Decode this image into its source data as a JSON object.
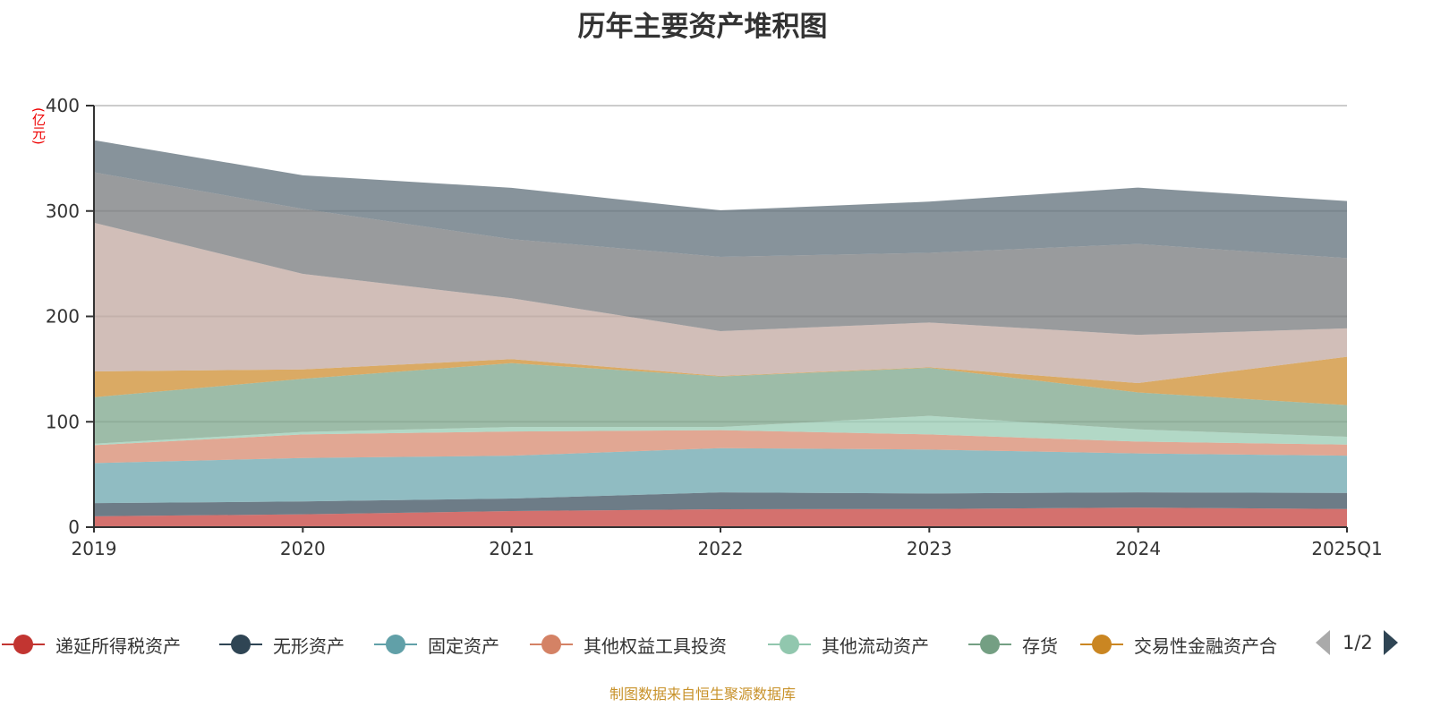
{
  "chart_data": {
    "type": "area",
    "stacked": true,
    "title": "历年主要资产堆积图",
    "ylabel": "(亿元)",
    "xlabel": "",
    "categories": [
      "2019",
      "2020",
      "2021",
      "2022",
      "2023",
      "2024",
      "2025Q1"
    ],
    "ylim": [
      0,
      400
    ],
    "yticks": [
      "0",
      "100",
      "200",
      "300",
      "400"
    ],
    "grid": true,
    "legend_position": "bottom",
    "legend_page": "1/2",
    "series": [
      {
        "name": "递延所得税资产",
        "color": "#c23531",
        "values": [
          10.3,
          12.2,
          15.3,
          17.0,
          17.2,
          18.6,
          17.2
        ]
      },
      {
        "name": "无形资产",
        "color": "#2f4554",
        "values": [
          12.5,
          12.2,
          11.9,
          16.0,
          14.8,
          14.4,
          15.3
        ]
      },
      {
        "name": "固定资产",
        "color": "#61a0a8",
        "values": [
          38.0,
          41.2,
          40.6,
          42.0,
          41.6,
          37.0,
          35.3
        ]
      },
      {
        "name": "其他权益工具投资",
        "color": "#d48265",
        "values": [
          17.0,
          22.4,
          23.0,
          17.0,
          14.4,
          11.2,
          10.5
        ]
      },
      {
        "name": "其他流动资产",
        "color": "#91c7ae",
        "values": [
          1.4,
          2.3,
          4.2,
          3.0,
          17.6,
          11.6,
          7.5
        ]
      },
      {
        "name": "存货",
        "color": "#749f83",
        "values": [
          44.1,
          50.5,
          60.6,
          48.0,
          45.6,
          35.0,
          30.0
        ]
      },
      {
        "name": "交易性金融资产合",
        "color": "#ca8622",
        "values": [
          24.5,
          8.9,
          3.8,
          0.5,
          0.5,
          8.9,
          45.9
        ]
      },
      {
        "color": "#bda29a",
        "values": [
          141.1,
          90.6,
          57.8,
          42.5,
          42.5,
          45.8,
          26.9
        ]
      },
      {
        "color": "#6e7074",
        "values": [
          47.8,
          61.7,
          56.1,
          70.5,
          66.1,
          86.2,
          66.7
        ]
      },
      {
        "color": "#546570",
        "values": [
          30.5,
          31.9,
          48.7,
          44.1,
          48.6,
          53.5,
          54.1
        ]
      }
    ]
  },
  "source": "制图数据来自恒生聚源数据库"
}
